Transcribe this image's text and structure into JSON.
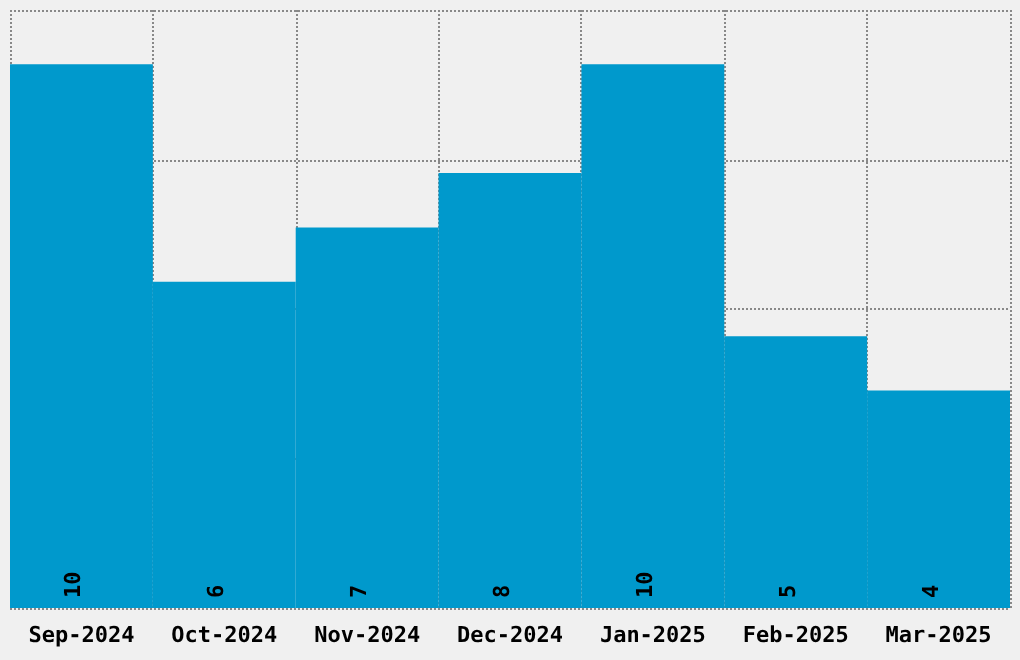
{
  "chart_data": {
    "type": "bar",
    "categories": [
      "Sep-2024",
      "Oct-2024",
      "Nov-2024",
      "Dec-2024",
      "Jan-2025",
      "Feb-2025",
      "Mar-2025"
    ],
    "values": [
      10,
      6,
      7,
      8,
      10,
      5,
      4
    ],
    "color": "#0099cc",
    "ylim": [
      0,
      11
    ],
    "yticks": [
      {
        "value": 0,
        "label": null
      },
      {
        "value": 2.75,
        "label": null
      },
      {
        "value": 5.5,
        "label": null
      },
      {
        "value": 8.25,
        "label": null
      },
      {
        "value": 11,
        "label": null
      }
    ],
    "grid": true,
    "tick_labels": "x",
    "data_labels": true
  }
}
